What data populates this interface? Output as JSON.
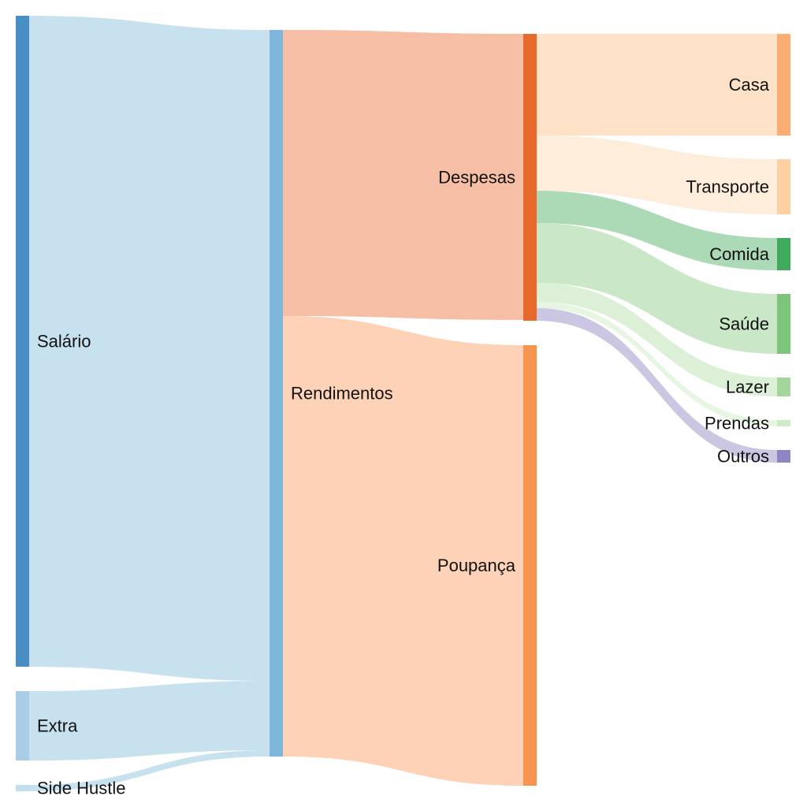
{
  "chart_data": {
    "type": "sankey",
    "title": "",
    "columns": [
      [
        "salario",
        "extra",
        "side_hustle"
      ],
      [
        "rendimentos"
      ],
      [
        "despesas",
        "poupanca"
      ],
      [
        "casa",
        "transporte",
        "comida",
        "saude",
        "lazer",
        "prendas",
        "outros"
      ]
    ],
    "nodes": [
      {
        "id": "salario",
        "label": "Salário",
        "color": "#4a8fc4"
      },
      {
        "id": "extra",
        "label": "Extra",
        "color": "#a9cde4"
      },
      {
        "id": "side_hustle",
        "label": "Side Hustle",
        "color": "#c2def0"
      },
      {
        "id": "rendimentos",
        "label": "Rendimentos",
        "color": "#7fb6dc"
      },
      {
        "id": "despesas",
        "label": "Despesas",
        "color": "#e8692c"
      },
      {
        "id": "poupanca",
        "label": "Poupança",
        "color": "#f7954e"
      },
      {
        "id": "casa",
        "label": "Casa",
        "color": "#fbad74"
      },
      {
        "id": "transporte",
        "label": "Transporte",
        "color": "#fdd0a2"
      },
      {
        "id": "comida",
        "label": "Comida",
        "color": "#41ab5d"
      },
      {
        "id": "saude",
        "label": "Saúde",
        "color": "#7dc57a"
      },
      {
        "id": "lazer",
        "label": "Lazer",
        "color": "#a3d59c"
      },
      {
        "id": "prendas",
        "label": "Prendas",
        "color": "#cdebc6"
      },
      {
        "id": "outros",
        "label": "Outros",
        "color": "#8c86c2"
      }
    ],
    "links": [
      {
        "source": "salario",
        "target": "rendimentos",
        "value": 826,
        "color": "#c5dfee"
      },
      {
        "source": "extra",
        "target": "rendimentos",
        "value": 88,
        "color": "#c5dfee"
      },
      {
        "source": "side_hustle",
        "target": "rendimentos",
        "value": 8,
        "color": "#c5dfee"
      },
      {
        "source": "rendimentos",
        "target": "despesas",
        "value": 363,
        "color": "#f5bba0"
      },
      {
        "source": "rendimentos",
        "target": "poupanca",
        "value": 559,
        "color": "#fdd0b2"
      },
      {
        "source": "despesas",
        "target": "casa",
        "value": 129,
        "color": "#fde0c4"
      },
      {
        "source": "despesas",
        "target": "transporte",
        "value": 70,
        "color": "#feecd9"
      },
      {
        "source": "despesas",
        "target": "comida",
        "value": 41,
        "color": "#a8d8b2"
      },
      {
        "source": "despesas",
        "target": "saude",
        "value": 76,
        "color": "#c7e6c4"
      },
      {
        "source": "despesas",
        "target": "lazer",
        "value": 24,
        "color": "#d9efd5"
      },
      {
        "source": "despesas",
        "target": "prendas",
        "value": 8,
        "color": "#e6f4e2"
      },
      {
        "source": "despesas",
        "target": "outros",
        "value": 16,
        "color": "#c8c4e0"
      }
    ]
  }
}
